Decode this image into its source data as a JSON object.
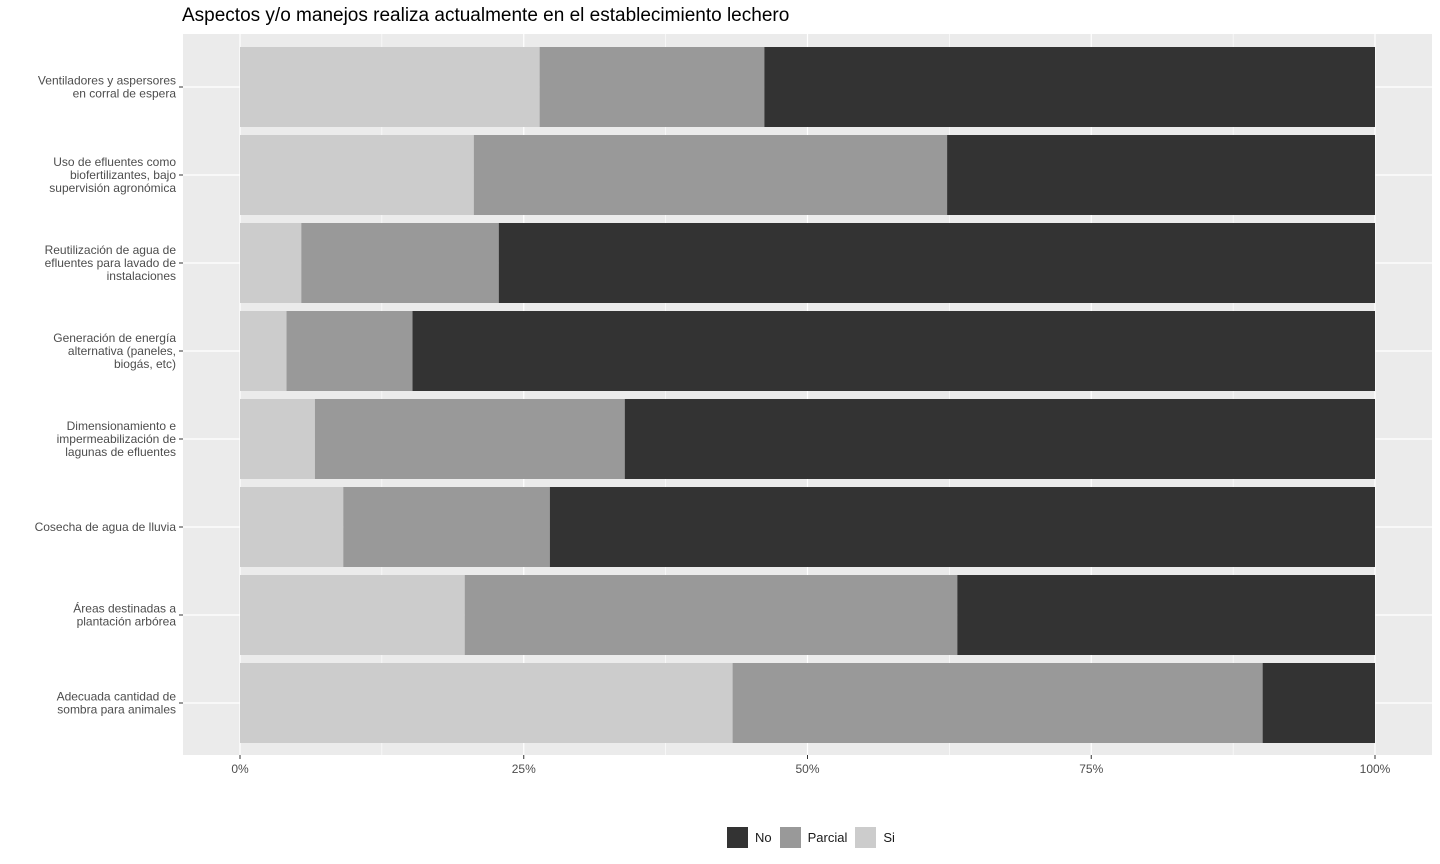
{
  "chart_data": {
    "type": "bar",
    "orientation": "horizontal",
    "stacked": true,
    "title": "Aspectos y/o manejos realiza actualmente en el establecimiento lechero",
    "xlabel": "",
    "ylabel": "",
    "xlim": [
      0,
      100
    ],
    "x_ticks": [
      "0%",
      "25%",
      "50%",
      "75%",
      "100%"
    ],
    "categories": [
      [
        "Ventiladores y aspersores",
        "en corral de espera"
      ],
      [
        "Uso de efluentes como",
        "biofertilizantes, bajo",
        "supervisión agronómica"
      ],
      [
        "Reutilización de agua de",
        "efluentes para lavado de",
        "instalaciones"
      ],
      [
        "Generación de energía",
        "alternativa (paneles,",
        "biogás, etc)"
      ],
      [
        "Dimensionamiento e",
        "impermeabilización de",
        "lagunas de efluentes"
      ],
      [
        "Cosecha de agua de lluvia"
      ],
      [
        "Áreas destinadas a",
        "plantación arbórea"
      ],
      [
        "Adecuada cantidad de",
        "sombra para animales"
      ]
    ],
    "series": [
      {
        "name": "Si",
        "color": "#cccccc",
        "values": [
          26.4,
          20.6,
          5.4,
          4.1,
          6.6,
          9.1,
          19.8,
          43.4
        ]
      },
      {
        "name": "Parcial",
        "color": "#999999",
        "values": [
          19.8,
          41.7,
          17.4,
          11.1,
          27.3,
          18.2,
          43.4,
          46.7
        ]
      },
      {
        "name": "No",
        "color": "#333333",
        "values": [
          53.8,
          37.7,
          77.2,
          84.8,
          66.1,
          72.7,
          36.8,
          9.9
        ]
      }
    ],
    "legend": {
      "position": "bottom",
      "order": [
        "No",
        "Parcial",
        "Si"
      ]
    },
    "grid": true,
    "panel_background": "#ebebeb"
  }
}
